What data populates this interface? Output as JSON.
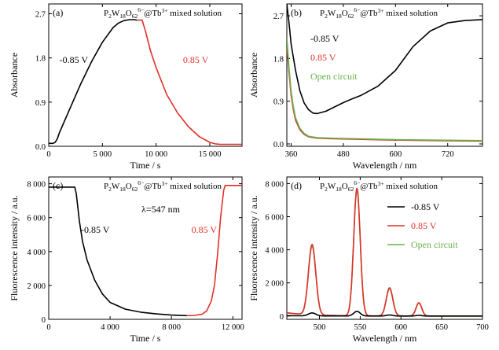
{
  "chart_data": [
    {
      "panel": "(a)",
      "type": "line",
      "title_parts": {
        "pre": "P",
        "s1": "2",
        "mid": "W",
        "s2": "18",
        "mid2": "O",
        "s3": "62",
        "sup": "6−",
        "post": "@Tb",
        "sup2": "3+",
        "tail": " mixed solution"
      },
      "xlabel": "Time / s",
      "ylabel": "Absorbance",
      "xlim": [
        0,
        18000
      ],
      "ylim": [
        0,
        2.9
      ],
      "xticks": [
        0,
        5000,
        10000,
        15000
      ],
      "xtick_labels": [
        "0",
        "5 000",
        "10 000",
        "15 000"
      ],
      "yticks": [
        0.0,
        0.9,
        1.8,
        2.7
      ],
      "ytick_labels": [
        "0.0",
        "0.9",
        "1.8",
        "2.7"
      ],
      "annotations": [
        {
          "text": "-0.85 V",
          "color": "#000000",
          "x": 1000,
          "y": 1.7
        },
        {
          "text": "0.85 V",
          "color": "#e0302a",
          "x": 12500,
          "y": 1.7
        }
      ],
      "series": [
        {
          "color": "#000000",
          "x": [
            0,
            400,
            600,
            800,
            1000,
            2000,
            3000,
            4000,
            5000,
            6000,
            6500,
            7000,
            7500,
            8000,
            8200
          ],
          "y": [
            0.06,
            0.06,
            0.08,
            0.15,
            0.28,
            0.78,
            1.28,
            1.73,
            2.12,
            2.42,
            2.51,
            2.56,
            2.58,
            2.58,
            2.57
          ]
        },
        {
          "color": "#e0302a",
          "x": [
            8200,
            8700,
            9000,
            9500,
            10000,
            11000,
            12000,
            13000,
            14000,
            15000,
            15500,
            16000,
            17000,
            18000
          ],
          "y": [
            2.57,
            2.57,
            2.35,
            1.93,
            1.6,
            1.05,
            0.68,
            0.4,
            0.2,
            0.08,
            0.05,
            0.04,
            0.04,
            0.04
          ]
        }
      ]
    },
    {
      "panel": "(b)",
      "type": "line",
      "title_parts": {
        "pre": "P",
        "s1": "2",
        "mid": "W",
        "s2": "18",
        "mid2": "O",
        "s3": "62",
        "sup": "6−",
        "post": "@Tb",
        "sup2": "3+",
        "tail": " mixed solution"
      },
      "xlabel": "Wavelength / nm",
      "ylabel": "Absorbance",
      "xlim": [
        350,
        800
      ],
      "ylim": [
        -0.05,
        2.95
      ],
      "xticks": [
        360,
        480,
        600,
        720
      ],
      "xtick_labels": [
        "360",
        "480",
        "600",
        "720"
      ],
      "yticks": [
        0.0,
        0.9,
        1.8,
        2.7
      ],
      "ytick_labels": [
        "0.0",
        "0.9",
        "1.8",
        "2.7"
      ],
      "legend": [
        {
          "text": "-0.85 V",
          "color": "#000000"
        },
        {
          "text": "0.85 V",
          "color": "#e0302a"
        },
        {
          "text": "Open circuit",
          "color": "#6ab04c"
        }
      ],
      "series": [
        {
          "color": "#000000",
          "x": [
            350,
            355,
            360,
            370,
            380,
            390,
            400,
            410,
            420,
            440,
            460,
            480,
            500,
            520,
            560,
            600,
            640,
            680,
            720,
            760,
            800
          ],
          "y": [
            2.95,
            2.55,
            2.1,
            1.55,
            1.12,
            0.86,
            0.72,
            0.65,
            0.64,
            0.69,
            0.78,
            0.87,
            0.95,
            1.02,
            1.22,
            1.55,
            2.05,
            2.38,
            2.55,
            2.6,
            2.62
          ]
        },
        {
          "color": "#e0302a",
          "x": [
            350,
            355,
            360,
            365,
            370,
            380,
            390,
            400,
            420,
            450,
            500,
            600,
            700,
            800
          ],
          "y": [
            2.1,
            1.5,
            1.02,
            0.72,
            0.5,
            0.3,
            0.2,
            0.15,
            0.12,
            0.11,
            0.1,
            0.08,
            0.07,
            0.06
          ]
        },
        {
          "color": "#6ab04c",
          "x": [
            350,
            355,
            360,
            365,
            370,
            380,
            390,
            400,
            420,
            450,
            500,
            600,
            700,
            800
          ],
          "y": [
            2.25,
            1.6,
            1.1,
            0.78,
            0.55,
            0.33,
            0.22,
            0.16,
            0.13,
            0.12,
            0.11,
            0.09,
            0.08,
            0.07
          ]
        }
      ]
    },
    {
      "panel": "(c)",
      "type": "line",
      "title_parts": {
        "pre": "P",
        "s1": "2",
        "mid": "W",
        "s2": "18",
        "mid2": "O",
        "s3": "62",
        "sup": "6−",
        "post": "@Tb",
        "sup2": "3+",
        "tail": " mixed solution"
      },
      "lambda_note": "λ=547 nm",
      "xlabel": "Time / s",
      "ylabel": "Fluorescence intensity / a.u.",
      "xlim": [
        0,
        12600
      ],
      "ylim": [
        0,
        8400
      ],
      "xticks": [
        0,
        4000,
        8000,
        12000
      ],
      "xtick_labels": [
        "0",
        "4 000",
        "8 000",
        "12 000"
      ],
      "yticks": [
        0,
        2000,
        4000,
        6000,
        8000
      ],
      "ytick_labels": [
        "0",
        "2 000",
        "4 000",
        "6 000",
        "8 000"
      ],
      "annotations": [
        {
          "text": "-0.85 V",
          "color": "#000000",
          "x": 2100,
          "y": 5100
        },
        {
          "text": "0.85 V",
          "color": "#e0302a",
          "x": 9300,
          "y": 5100
        }
      ],
      "series": [
        {
          "color": "#000000",
          "x": [
            0,
            1700,
            1800,
            2000,
            2200,
            2500,
            3000,
            3500,
            4000,
            5000,
            6000,
            7000,
            8000,
            9000
          ],
          "y": [
            7800,
            7800,
            7400,
            5800,
            4600,
            3500,
            2300,
            1500,
            1000,
            600,
            420,
            320,
            250,
            220
          ]
        },
        {
          "color": "#e0302a",
          "x": [
            9000,
            9500,
            10000,
            10300,
            10600,
            10800,
            11000,
            11200,
            11400,
            11500,
            12000,
            12600
          ],
          "y": [
            220,
            230,
            300,
            500,
            1100,
            2000,
            3800,
            6000,
            7600,
            7900,
            7900,
            7900
          ]
        }
      ]
    },
    {
      "panel": "(d)",
      "type": "line",
      "title_parts": {
        "pre": "P",
        "s1": "2",
        "mid": "W",
        "s2": "18",
        "mid2": "O",
        "s3": "62",
        "sup": "6−",
        "post": "@Tb",
        "sup2": "3+",
        "tail": " mixed solution"
      },
      "xlabel": "Wavelength / nm",
      "ylabel": "Fluorescence intensity / a.u.",
      "xlim": [
        460,
        700
      ],
      "ylim": [
        -200,
        8400
      ],
      "xticks": [
        500,
        550,
        600,
        650,
        700
      ],
      "xtick_labels": [
        "500",
        "550",
        "600",
        "650",
        "700"
      ],
      "yticks": [
        0,
        2000,
        4000,
        6000,
        8000
      ],
      "ytick_labels": [
        "0",
        "2 000",
        "4 000",
        "6 000",
        "8 000"
      ],
      "legend": [
        {
          "text": "-0.85 V",
          "color": "#000000"
        },
        {
          "text": "0.85 V",
          "color": "#e0302a"
        },
        {
          "text": "Open circuit",
          "color": "#6ab04c"
        }
      ],
      "peaks": [
        {
          "center": 491,
          "width": 4.5,
          "heights": [
            180,
            4250,
            4150
          ]
        },
        {
          "center": 546,
          "width": 4.0,
          "heights": [
            280,
            7700,
            7600
          ]
        },
        {
          "center": 586,
          "width": 4.0,
          "heights": [
            60,
            1700,
            1650
          ]
        },
        {
          "center": 622,
          "width": 3.5,
          "heights": [
            40,
            800,
            780
          ]
        }
      ],
      "baseline": [
        20,
        200,
        190
      ]
    }
  ]
}
